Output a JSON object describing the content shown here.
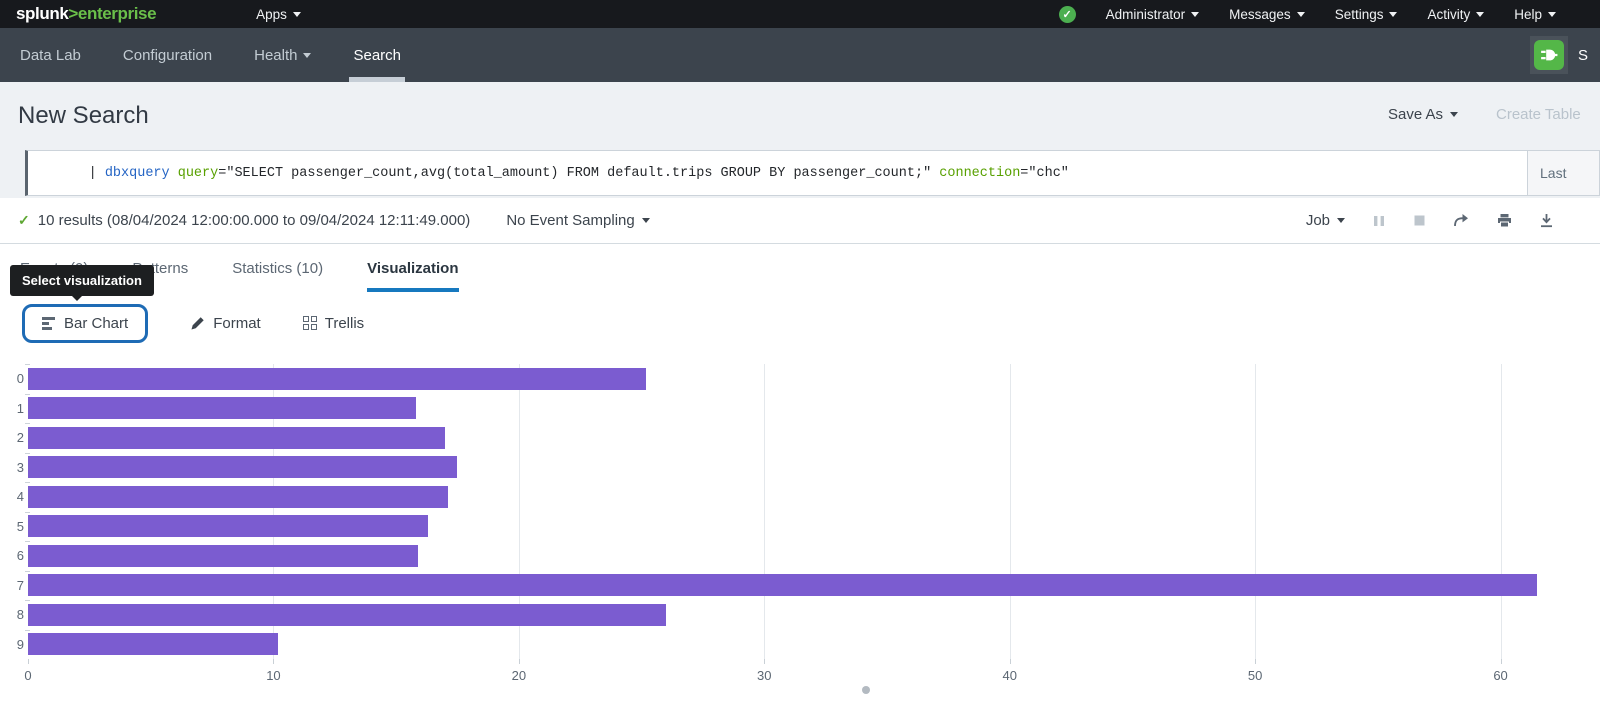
{
  "topbar": {
    "logo": {
      "part1": "splunk",
      "part2": ">",
      "part3": "enterprise"
    },
    "apps_label": "Apps",
    "status_icon": "check-circle",
    "menus": [
      "Administrator",
      "Messages",
      "Settings",
      "Activity",
      "Help"
    ]
  },
  "navbar": {
    "items": [
      {
        "label": "Data Lab",
        "active": false
      },
      {
        "label": "Configuration",
        "active": false
      },
      {
        "label": "Health",
        "active": false
      },
      {
        "label": "Search",
        "active": true
      }
    ],
    "app_icon": "plug-icon",
    "app_name_partial": "S"
  },
  "header": {
    "title": "New Search",
    "save_as": "Save As",
    "create_tab": "Create Table"
  },
  "search": {
    "query_segments": [
      {
        "text": "| ",
        "type": "plain"
      },
      {
        "text": "dbxquery",
        "type": "command"
      },
      {
        "text": " ",
        "type": "plain"
      },
      {
        "text": "query",
        "type": "param"
      },
      {
        "text": "=\"SELECT passenger_count,avg(total_amount) FROM default.trips GROUP BY passenger_count;\" ",
        "type": "plain"
      },
      {
        "text": "connection",
        "type": "param"
      },
      {
        "text": "=\"chc\"",
        "type": "plain"
      }
    ],
    "time_range_partial": "Last"
  },
  "results_bar": {
    "status_text": "10 results (08/04/2024 12:00:00.000 to 09/04/2024 12:11:49.000)",
    "sampling_label": "No Event Sampling",
    "job_label": "Job",
    "icons": [
      "pause",
      "stop",
      "share",
      "print",
      "download"
    ]
  },
  "tabs": [
    {
      "label": "Events (0)",
      "active": false
    },
    {
      "label": "Patterns",
      "active": false
    },
    {
      "label": "Statistics (10)",
      "active": false
    },
    {
      "label": "Visualization",
      "active": true
    }
  ],
  "tooltip": {
    "text": "Select visualization"
  },
  "viz_controls": {
    "chart_type_label": "Bar Chart",
    "format_label": "Format",
    "trellis_label": "Trellis"
  },
  "chart_data": {
    "type": "bar",
    "orientation": "horizontal",
    "title": "",
    "xlabel": "",
    "ylabel": "",
    "categories": [
      "0",
      "1",
      "2",
      "3",
      "4",
      "5",
      "6",
      "7",
      "8",
      "9"
    ],
    "values": [
      25.2,
      15.8,
      17.0,
      17.5,
      17.1,
      16.3,
      15.9,
      61.5,
      26.0,
      10.2
    ],
    "xticks": [
      0,
      10,
      20,
      30,
      40,
      50,
      60
    ],
    "xlim": [
      0,
      63.4
    ],
    "grid": true,
    "legend": false,
    "bar_color": "#7b5cd0"
  },
  "colors": {
    "topbar_bg": "#17191d",
    "navbar_bg": "#3c444d",
    "page_bg": "#eef1f4",
    "brand_green": "#6abf4a",
    "accent_blue": "#1779bf",
    "focus_blue": "#1e6bb5",
    "status_green": "#5da732",
    "query_command": "#2464c4",
    "query_param": "#58a000"
  }
}
